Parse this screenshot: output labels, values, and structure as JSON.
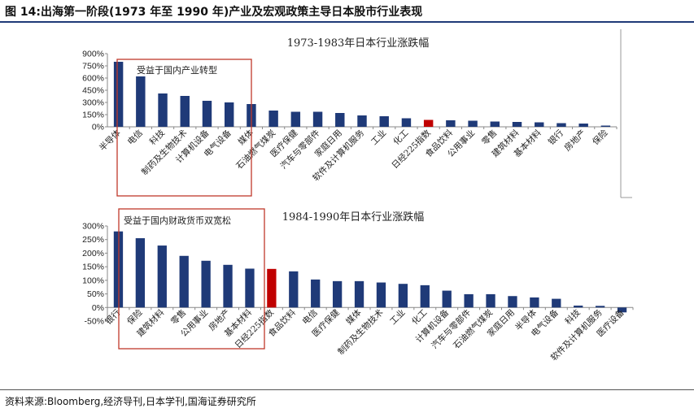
{
  "figure": {
    "title": "图 14:出海第一阶段(1973 年至 1990 年)产业及宏观政策主导日本股市行业表现",
    "source_label": "资料来源:",
    "source_text": "Bloomberg,经济导刊,日本学刊,国海证券研究所"
  },
  "colors": {
    "bar": "#1f3a78",
    "highlight": "#c00000",
    "box": "#c0392b",
    "axis": "#888888"
  },
  "chart_data": [
    {
      "type": "bar",
      "title": "1973-1983年日本行业涨跌幅",
      "categories": [
        "半导体",
        "电信",
        "科技",
        "制药及生物技术",
        "计算机设备",
        "电气设备",
        "媒体",
        "石油燃气煤炭",
        "医疗保健",
        "汽车与零部件",
        "家庭日用",
        "软件及计算机服务",
        "工业",
        "化工",
        "日经225指数",
        "食品饮料",
        "公用事业",
        "零售",
        "建筑材料",
        "基本材料",
        "银行",
        "房地产",
        "保险"
      ],
      "values": [
        800,
        620,
        410,
        380,
        320,
        300,
        280,
        200,
        185,
        185,
        170,
        140,
        130,
        105,
        85,
        80,
        75,
        65,
        60,
        55,
        45,
        40,
        15
      ],
      "highlight_index": 14,
      "yticks": [
        "0%",
        "150%",
        "300%",
        "450%",
        "600%",
        "750%",
        "900%"
      ],
      "ylim": [
        0,
        900
      ],
      "annotation": "受益于国内产业转型"
    },
    {
      "type": "bar",
      "title": "1984-1990年日本行业涨跌幅",
      "categories": [
        "银行",
        "保险",
        "建筑材料",
        "零售",
        "公用事业",
        "房地产",
        "基本材料",
        "日经225指数",
        "食品饮料",
        "电信",
        "医疗保健",
        "媒体",
        "制药及生物技术",
        "工业",
        "化工",
        "计算机设备",
        "汽车与零部件",
        "石油燃气煤炭",
        "家庭日用",
        "半导体",
        "电气设备",
        "科技",
        "软件及计算机服务",
        "医疗设备"
      ],
      "values": [
        280,
        255,
        228,
        190,
        172,
        157,
        143,
        142,
        133,
        103,
        97,
        97,
        92,
        87,
        82,
        62,
        49,
        49,
        42,
        37,
        32,
        7,
        6,
        -18
      ],
      "highlight_index": 7,
      "yticks": [
        "-50%",
        "0%",
        "50%",
        "100%",
        "150%",
        "200%",
        "250%",
        "300%"
      ],
      "ylim": [
        -50,
        300
      ],
      "annotation": "受益于国内财政货币双宽松"
    }
  ]
}
